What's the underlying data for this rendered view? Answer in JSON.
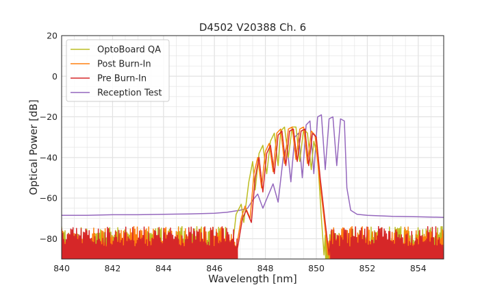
{
  "chart_data": {
    "type": "line",
    "title": "D4502 V20388 Ch. 6",
    "xlabel": "Wavelength [nm]",
    "ylabel": "Optical Power [dB]",
    "xlim": [
      840,
      855
    ],
    "ylim": [
      -90,
      20
    ],
    "xticks": [
      "840",
      "842",
      "844",
      "846",
      "848",
      "850",
      "852",
      "854"
    ],
    "yticks": [
      "20",
      "0",
      "−20",
      "−40",
      "−60",
      "−80"
    ],
    "grid": true,
    "legend_position": "top-left",
    "legend": [
      "OptoBoard QA",
      "Post Burn-In",
      "Pre Burn-In",
      "Reception Test"
    ],
    "series": [
      {
        "name": "OptoBoard QA",
        "color": "#bcbd22",
        "noise_floor": "-75 to below -90",
        "points": [
          [
            846.7,
            -85
          ],
          [
            846.85,
            -68
          ],
          [
            847.05,
            -63
          ],
          [
            847.15,
            -72
          ],
          [
            847.35,
            -52
          ],
          [
            847.5,
            -42
          ],
          [
            847.6,
            -56
          ],
          [
            847.75,
            -38
          ],
          [
            847.9,
            -34
          ],
          [
            848.05,
            -48
          ],
          [
            848.2,
            -32
          ],
          [
            848.35,
            -28
          ],
          [
            848.5,
            -44
          ],
          [
            848.6,
            -27
          ],
          [
            848.75,
            -25
          ],
          [
            848.9,
            -40
          ],
          [
            849.05,
            -25
          ],
          [
            849.2,
            -25
          ],
          [
            849.35,
            -42
          ],
          [
            849.5,
            -26
          ],
          [
            849.65,
            -28
          ],
          [
            849.8,
            -46
          ],
          [
            849.9,
            -32
          ],
          [
            850.05,
            -40
          ],
          [
            850.2,
            -70
          ],
          [
            850.3,
            -88
          ]
        ]
      },
      {
        "name": "Post Burn-In",
        "color": "#ff7f0e",
        "noise_floor": "-75 to below -90",
        "points": [
          [
            846.85,
            -85
          ],
          [
            847.05,
            -70
          ],
          [
            847.2,
            -64
          ],
          [
            847.4,
            -70
          ],
          [
            847.55,
            -48
          ],
          [
            847.7,
            -40
          ],
          [
            847.85,
            -55
          ],
          [
            848.0,
            -37
          ],
          [
            848.15,
            -33
          ],
          [
            848.3,
            -47
          ],
          [
            848.45,
            -28
          ],
          [
            848.6,
            -26
          ],
          [
            848.75,
            -43
          ],
          [
            848.9,
            -26
          ],
          [
            849.05,
            -25
          ],
          [
            849.2,
            -41
          ],
          [
            849.35,
            -26
          ],
          [
            849.5,
            -25
          ],
          [
            849.65,
            -43
          ],
          [
            849.8,
            -27
          ],
          [
            849.95,
            -29
          ],
          [
            850.1,
            -48
          ],
          [
            850.3,
            -70
          ],
          [
            850.45,
            -88
          ]
        ]
      },
      {
        "name": "Pre Burn-In",
        "color": "#d62728",
        "noise_floor": "-75 to below -90",
        "points": [
          [
            846.9,
            -85
          ],
          [
            847.1,
            -70
          ],
          [
            847.25,
            -66
          ],
          [
            847.45,
            -72
          ],
          [
            847.6,
            -50
          ],
          [
            847.75,
            -40
          ],
          [
            847.9,
            -57
          ],
          [
            848.05,
            -38
          ],
          [
            848.2,
            -34
          ],
          [
            848.35,
            -48
          ],
          [
            848.5,
            -29
          ],
          [
            848.65,
            -27
          ],
          [
            848.8,
            -44
          ],
          [
            848.95,
            -27
          ],
          [
            849.1,
            -26
          ],
          [
            849.25,
            -42
          ],
          [
            849.4,
            -27
          ],
          [
            849.55,
            -26
          ],
          [
            849.7,
            -44
          ],
          [
            849.85,
            -28
          ],
          [
            850.0,
            -30
          ],
          [
            850.15,
            -50
          ],
          [
            850.35,
            -72
          ],
          [
            850.5,
            -88
          ]
        ]
      },
      {
        "name": "Reception Test",
        "color": "#9467bd",
        "points": [
          [
            840,
            -68.5
          ],
          [
            841,
            -68.5
          ],
          [
            842,
            -68.2
          ],
          [
            843,
            -68.2
          ],
          [
            844,
            -68
          ],
          [
            845,
            -67.8
          ],
          [
            846,
            -67.5
          ],
          [
            846.5,
            -67
          ],
          [
            847,
            -66
          ],
          [
            847.3,
            -65
          ],
          [
            847.5,
            -61
          ],
          [
            847.7,
            -58
          ],
          [
            847.9,
            -65
          ],
          [
            848.1,
            -59
          ],
          [
            848.3,
            -53
          ],
          [
            848.5,
            -62
          ],
          [
            848.7,
            -40
          ],
          [
            848.85,
            -34
          ],
          [
            849.0,
            -52
          ],
          [
            849.15,
            -30
          ],
          [
            849.3,
            -28
          ],
          [
            849.45,
            -50
          ],
          [
            849.6,
            -24
          ],
          [
            849.75,
            -22
          ],
          [
            849.9,
            -48
          ],
          [
            850.05,
            -20
          ],
          [
            850.2,
            -19
          ],
          [
            850.35,
            -46
          ],
          [
            850.5,
            -21
          ],
          [
            850.65,
            -20
          ],
          [
            850.8,
            -44
          ],
          [
            850.95,
            -21
          ],
          [
            851.1,
            -22
          ],
          [
            851.2,
            -55
          ],
          [
            851.35,
            -66
          ],
          [
            851.6,
            -68
          ],
          [
            852,
            -68.5
          ],
          [
            853,
            -69
          ],
          [
            854,
            -69.2
          ],
          [
            855,
            -69.5
          ]
        ]
      }
    ]
  }
}
